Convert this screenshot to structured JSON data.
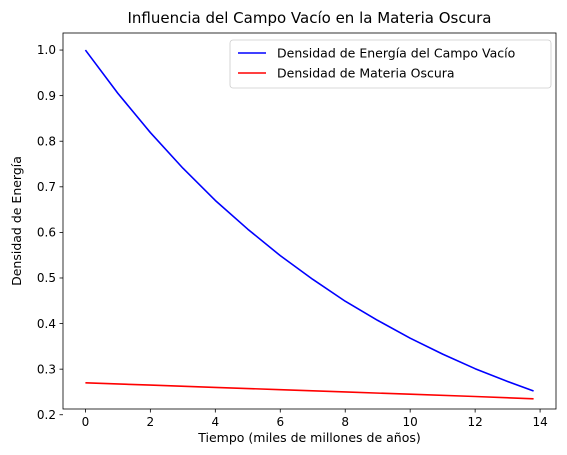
{
  "chart_data": {
    "type": "line",
    "title": "Influencia del Campo Vacío en la Materia Oscura",
    "xlabel": "Tiempo (miles de millones de años)",
    "ylabel": "Densidad de Energía",
    "xlim": [
      -0.69,
      14.49
    ],
    "ylim": [
      0.2126,
      1.0374
    ],
    "xticks": [
      0,
      2,
      4,
      6,
      8,
      10,
      12,
      14
    ],
    "yticks": [
      0.2,
      0.3,
      0.4,
      0.5,
      0.6,
      0.7,
      0.8,
      0.9,
      1.0
    ],
    "ytick_labels": [
      "0.2",
      "0.3",
      "0.4",
      "0.5",
      "0.6",
      "0.7",
      "0.8",
      "0.9",
      "1.0"
    ],
    "grid": false,
    "legend": "top-right",
    "series": [
      {
        "name": "Densidad de Energía del Campo Vacío",
        "color": "#0000ff",
        "x": [
          0,
          1,
          2,
          3,
          4,
          5,
          6,
          7,
          8,
          9,
          10,
          11,
          12,
          13,
          13.8
        ],
        "y": [
          1.0,
          0.905,
          0.819,
          0.741,
          0.67,
          0.607,
          0.549,
          0.497,
          0.449,
          0.407,
          0.368,
          0.333,
          0.301,
          0.273,
          0.252
        ]
      },
      {
        "name": "Densidad de Materia Oscura",
        "color": "#ff0000",
        "x": [
          0,
          2,
          4,
          6,
          8,
          10,
          12,
          13.8
        ],
        "y": [
          0.27,
          0.265,
          0.26,
          0.255,
          0.25,
          0.245,
          0.24,
          0.235
        ]
      }
    ]
  }
}
